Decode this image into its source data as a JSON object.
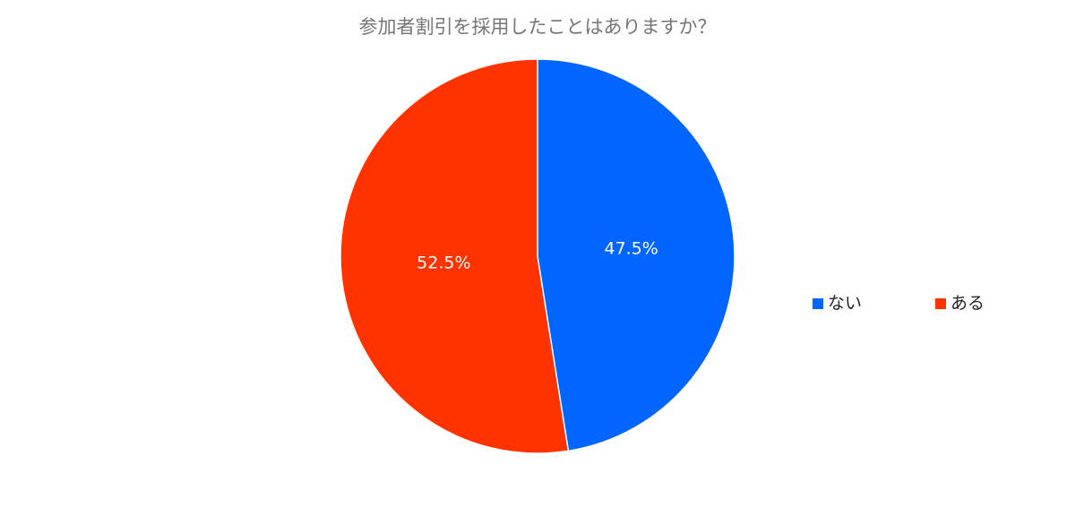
{
  "chart_data": {
    "type": "pie",
    "title": "参加者割引を採用したことはありますか？",
    "categories": [
      "ない",
      "ある"
    ],
    "values": [
      47.5,
      52.5
    ],
    "value_labels": [
      "47.5%",
      "52.5%"
    ],
    "colors": [
      "#0066ff",
      "#ff3300"
    ],
    "legend": "right"
  }
}
